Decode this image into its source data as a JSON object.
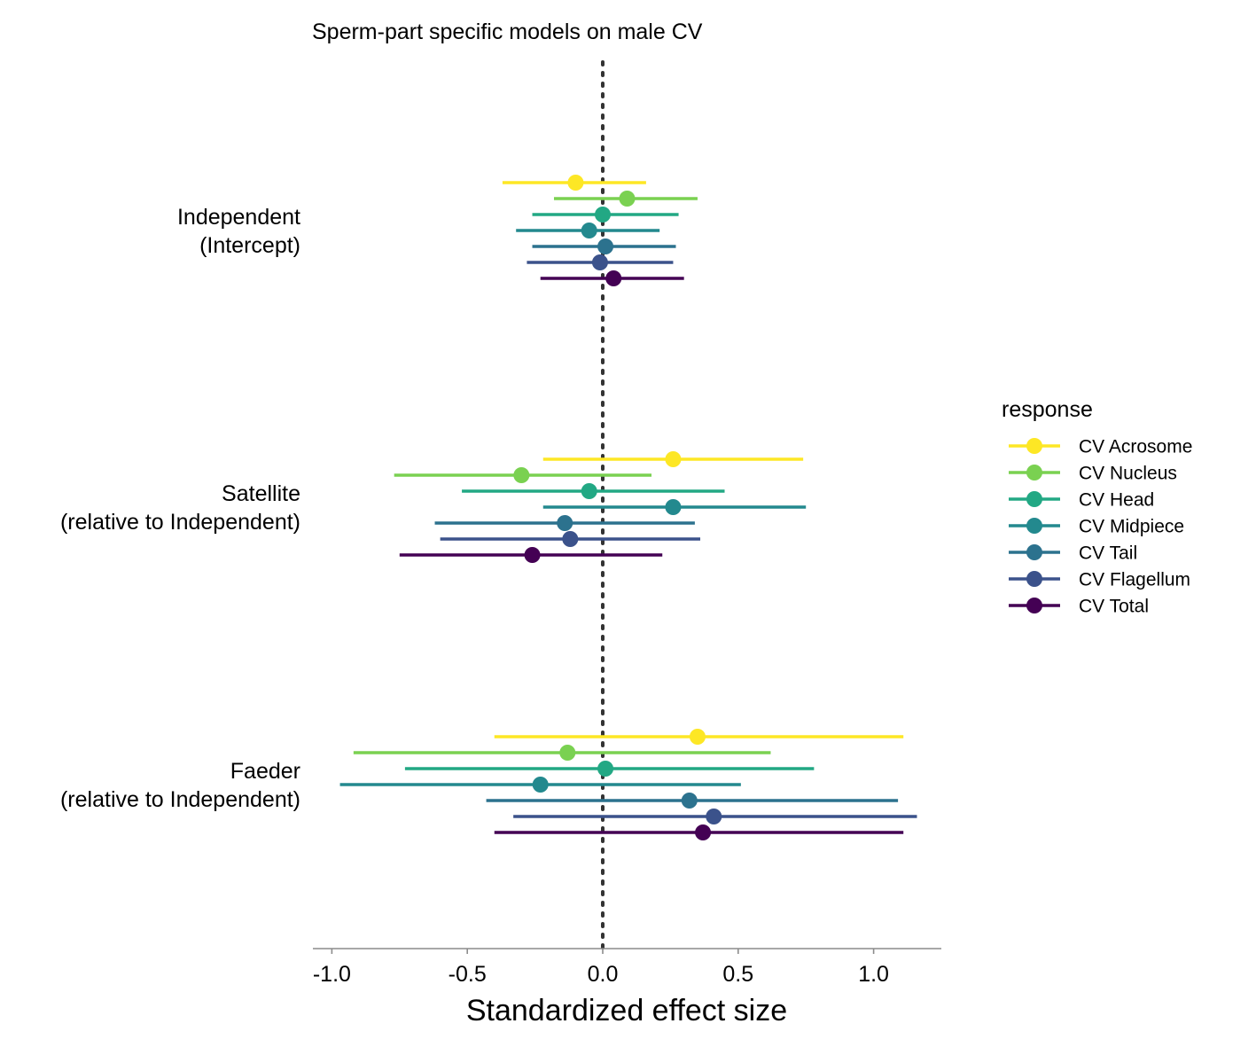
{
  "chart_data": {
    "type": "forest",
    "title": "Sperm-part specific models on male CV",
    "xlabel": "Standardized effect size",
    "ylabel": "",
    "xlim": [
      -1.07,
      1.25
    ],
    "xticks": [
      -1.0,
      -0.5,
      0.0,
      0.5,
      1.0
    ],
    "xtick_labels": [
      "-1.0",
      "-0.5",
      "0.0",
      "0.5",
      "1.0"
    ],
    "reference_line": 0,
    "grid": false,
    "legend": {
      "title": "response",
      "position": "right"
    },
    "groups": [
      {
        "id": "independent",
        "label_lines": [
          "Independent",
          "(Intercept)"
        ]
      },
      {
        "id": "satellite",
        "label_lines": [
          "Satellite",
          "(relative to Independent)"
        ]
      },
      {
        "id": "faeder",
        "label_lines": [
          "Faeder",
          "(relative to Independent)"
        ]
      }
    ],
    "series": [
      {
        "name": "CV Acrosome",
        "color": "#FDE725",
        "estimates": [
          -0.1,
          0.26,
          0.35
        ],
        "lower": [
          -0.37,
          -0.22,
          -0.4
        ],
        "upper": [
          0.16,
          0.74,
          1.11
        ]
      },
      {
        "name": "CV Nucleus",
        "color": "#7AD151",
        "estimates": [
          0.09,
          -0.3,
          -0.13
        ],
        "lower": [
          -0.18,
          -0.77,
          -0.92
        ],
        "upper": [
          0.35,
          0.18,
          0.62
        ]
      },
      {
        "name": "CV Head",
        "color": "#22A884",
        "estimates": [
          0.0,
          -0.05,
          0.01
        ],
        "lower": [
          -0.26,
          -0.52,
          -0.73
        ],
        "upper": [
          0.28,
          0.45,
          0.78
        ]
      },
      {
        "name": "CV Midpiece",
        "color": "#23898E",
        "estimates": [
          -0.05,
          0.26,
          -0.23
        ],
        "lower": [
          -0.32,
          -0.22,
          -0.97
        ],
        "upper": [
          0.21,
          0.75,
          0.51
        ]
      },
      {
        "name": "CV Tail",
        "color": "#2C728E",
        "estimates": [
          0.01,
          -0.14,
          0.32
        ],
        "lower": [
          -0.26,
          -0.62,
          -0.43
        ],
        "upper": [
          0.27,
          0.34,
          1.09
        ]
      },
      {
        "name": "CV Flagellum",
        "color": "#3B528B",
        "estimates": [
          -0.01,
          -0.12,
          0.41
        ],
        "lower": [
          -0.28,
          -0.6,
          -0.33
        ],
        "upper": [
          0.26,
          0.36,
          1.16
        ]
      },
      {
        "name": "CV Total",
        "color": "#440154",
        "estimates": [
          0.04,
          -0.26,
          0.37
        ],
        "lower": [
          -0.23,
          -0.75,
          -0.4
        ],
        "upper": [
          0.3,
          0.22,
          1.11
        ]
      }
    ]
  }
}
